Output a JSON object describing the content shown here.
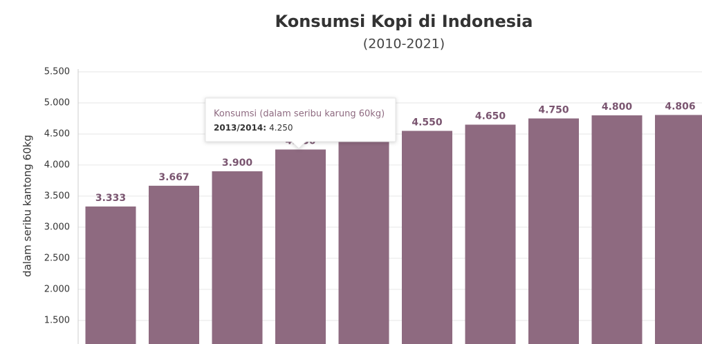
{
  "chart_data": {
    "type": "bar",
    "title": "Konsumsi Kopi di Indonesia",
    "subtitle": "(2010-2021)",
    "y_label": "dalam seribu kantong 60kg",
    "categories": [
      null,
      null,
      null,
      "2013/2014",
      null,
      null,
      null,
      null,
      null,
      null
    ],
    "series": [
      {
        "name": "Konsumsi (dalam seribu karung 60kg)",
        "color": "#8e6a80",
        "values": [
          3333,
          3667,
          3900,
          4250,
          4450,
          4550,
          4650,
          4750,
          4800,
          4806
        ],
        "value_labels": [
          "3.333",
          "3.667",
          "3.900",
          "4.250",
          "4.450",
          "4.550",
          "4.650",
          "4.750",
          "4.800",
          "4.806"
        ]
      }
    ],
    "ylim": [
      1120,
      5500
    ],
    "yticks": [
      {
        "value": 1500,
        "label": "1.500"
      },
      {
        "value": 2000,
        "label": "2.000"
      },
      {
        "value": 2500,
        "label": "2.500"
      },
      {
        "value": 3000,
        "label": "3.000"
      },
      {
        "value": 3500,
        "label": "3.500"
      },
      {
        "value": 4000,
        "label": "4.000"
      },
      {
        "value": 4500,
        "label": "4.500"
      },
      {
        "value": 5000,
        "label": "5.000"
      },
      {
        "value": 5500,
        "label": "5.500"
      }
    ],
    "grid": true,
    "tooltip_index": 3
  }
}
